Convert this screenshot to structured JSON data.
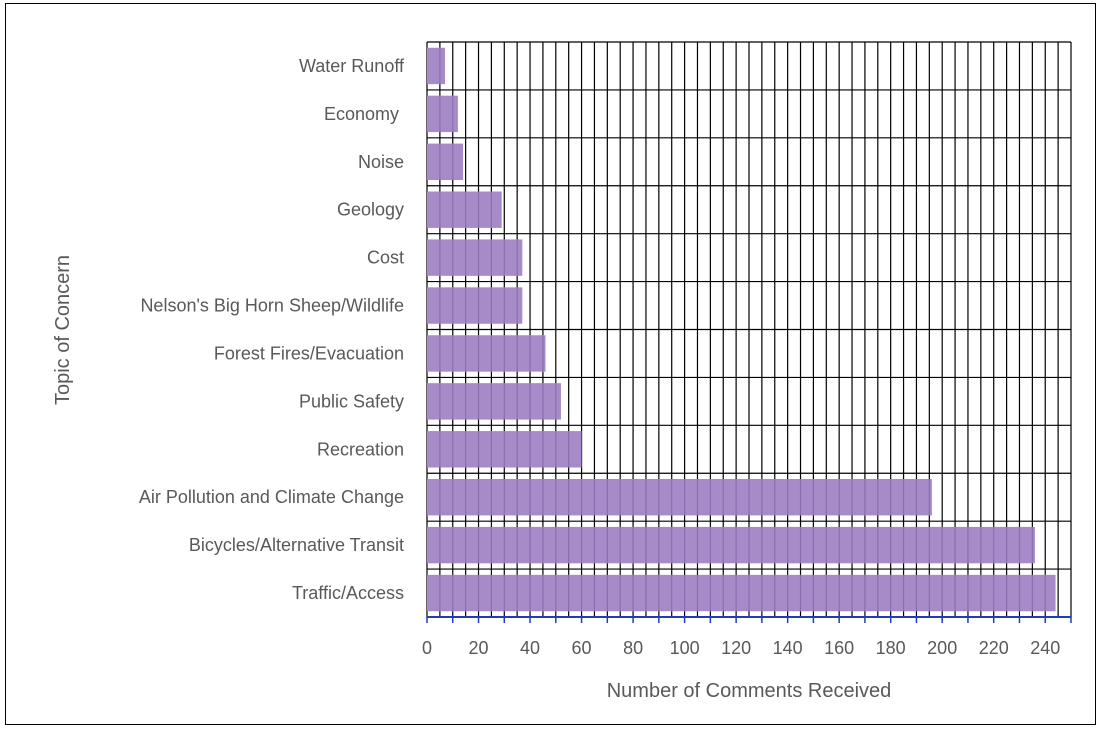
{
  "chart_data": {
    "type": "bar",
    "orientation": "horizontal",
    "categories": [
      "Water Runoff",
      "Economy ",
      "Noise",
      "Geology",
      "Cost",
      "Nelson's Big Horn Sheep/Wildlife",
      "Forest Fires/Evacuation",
      "Public Safety",
      "Recreation",
      "Air Pollution and Climate Change",
      "Bicycles/Alternative Transit",
      "Traffic/Access"
    ],
    "values": [
      7,
      12,
      14,
      29,
      37,
      37,
      46,
      52,
      60,
      196,
      236,
      244
    ],
    "xlabel": "Number of Comments Received",
    "ylabel": "Topic of Concern",
    "xlim": [
      0,
      250
    ],
    "xticks": [
      0,
      20,
      40,
      60,
      80,
      100,
      120,
      140,
      160,
      180,
      200,
      220,
      240
    ],
    "grid": true,
    "legend": "none",
    "colors": {
      "bar_fill": "#a68bc8",
      "bar_stripe": "#8a6eb2",
      "grid": "#000000",
      "x_axis": "#1f3bbf",
      "text": "#595959"
    }
  }
}
